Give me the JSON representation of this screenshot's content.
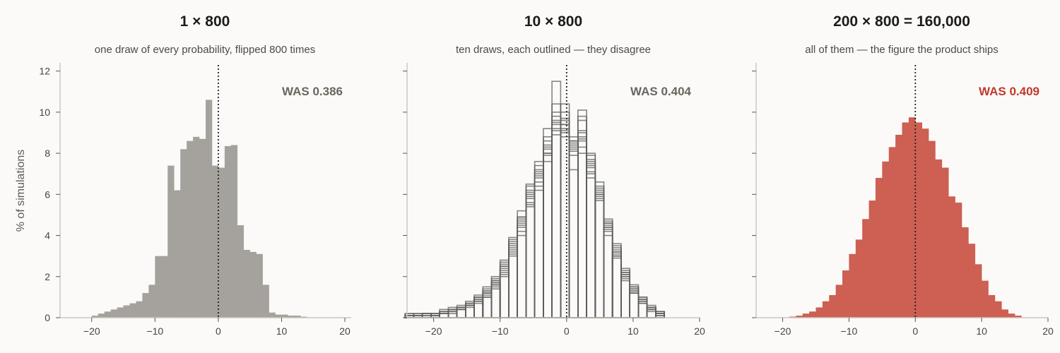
{
  "y_axis_label": "% of simulations",
  "chart_data": [
    {
      "type": "bar",
      "title": "1 × 800",
      "subtitle": "one draw of every probability, flipped 800 times",
      "annotation": "WAS 0.386",
      "annotation_color": "#6b655f",
      "style": "filled",
      "fill": "#a5a29d",
      "xlim": [
        -25,
        21
      ],
      "ylim": [
        0,
        12.4
      ],
      "xticks": [
        -20,
        -10,
        0,
        10,
        20
      ],
      "yticks": [
        0,
        2,
        4,
        6,
        8,
        10,
        12
      ],
      "bin_width": 1.0,
      "reference_line_x": 0,
      "bin_starts": [
        -20,
        -19,
        -18,
        -17,
        -16,
        -15,
        -14,
        -13,
        -12,
        -11,
        -10,
        -9,
        -8,
        -7,
        -6,
        -5,
        -4,
        -3,
        -2,
        -1,
        0,
        1,
        2,
        3,
        4,
        5,
        6,
        7,
        8,
        9,
        10,
        11,
        12,
        13
      ],
      "values": [
        0.1,
        0.2,
        0.3,
        0.4,
        0.5,
        0.6,
        0.7,
        0.8,
        1.2,
        1.6,
        3.0,
        3.0,
        7.4,
        6.2,
        8.2,
        8.6,
        8.8,
        8.7,
        10.6,
        7.4,
        7.3,
        8.35,
        8.4,
        4.5,
        3.3,
        3.2,
        3.1,
        1.6,
        0.25,
        0.15,
        0.15,
        0.1,
        0.1,
        0.05
      ]
    },
    {
      "type": "bar",
      "title": "10 × 800",
      "subtitle": "ten draws, each outlined — they disagree",
      "annotation": "WAS 0.404",
      "annotation_color": "#6b655f",
      "style": "step-outline",
      "stroke": "#5e5e5e",
      "xlim": [
        -24,
        20
      ],
      "ylim": [
        0,
        12.4
      ],
      "xticks": [
        -20,
        -10,
        0,
        10,
        20
      ],
      "yticks": [
        0,
        2,
        4,
        6,
        8,
        10,
        12
      ],
      "bin_width": 1.3,
      "reference_line_x": 0,
      "bin_starts": [
        -24.3,
        -23.0,
        -21.7,
        -20.4,
        -19.1,
        -17.8,
        -16.5,
        -15.2,
        -13.9,
        -12.6,
        -11.3,
        -10.0,
        -8.7,
        -7.4,
        -6.1,
        -4.8,
        -3.5,
        -2.2,
        -0.9,
        0.4,
        1.7,
        3.0,
        4.3,
        5.6,
        6.9,
        8.2,
        9.5,
        10.8,
        12.1,
        13.4
      ],
      "series": [
        {
          "values": [
            0.2,
            0,
            0.2,
            0,
            0.2,
            0.3,
            0.4,
            0.5,
            0.7,
            1.0,
            1.4,
            2.2,
            3.0,
            4.4,
            5.4,
            6.6,
            8.3,
            9.4,
            9.6,
            8.1,
            8.6,
            7.3,
            6.2,
            4.6,
            3.2,
            2.0,
            1.4,
            0.8,
            0.4,
            0.2
          ]
        },
        {
          "values": [
            0.1,
            0.1,
            0,
            0.2,
            0.3,
            0.4,
            0.5,
            0.6,
            0.8,
            1.1,
            1.6,
            2.0,
            3.4,
            4.0,
            5.8,
            6.2,
            8.0,
            9.8,
            9.2,
            8.6,
            9.0,
            7.7,
            5.9,
            4.3,
            3.0,
            2.2,
            1.2,
            0.9,
            0.5,
            0.3
          ]
        },
        {
          "values": [
            0,
            0,
            0.2,
            0.1,
            0.2,
            0.4,
            0.6,
            0.7,
            1.0,
            1.3,
            1.5,
            2.4,
            3.2,
            4.8,
            5.6,
            6.9,
            7.6,
            8.9,
            10.4,
            8.5,
            8.3,
            7.0,
            6.6,
            4.0,
            3.6,
            1.8,
            1.6,
            0.7,
            0.4,
            0.2
          ]
        },
        {
          "values": [
            0,
            0.1,
            0.2,
            0.2,
            0.3,
            0.3,
            0.4,
            0.6,
            0.9,
            1.2,
            1.8,
            2.6,
            3.7,
            4.9,
            6.4,
            7.2,
            8.6,
            9.1,
            9.0,
            7.9,
            9.6,
            7.6,
            6.0,
            4.4,
            3.1,
            2.4,
            1.3,
            1.0,
            0.4,
            0.1
          ]
        },
        {
          "values": [
            0.2,
            0,
            0.1,
            0.2,
            0.2,
            0.5,
            0.5,
            0.8,
            1.1,
            1.5,
            2.0,
            2.8,
            3.9,
            5.2,
            6.0,
            7.6,
            9.2,
            10.0,
            9.4,
            7.2,
            8.0,
            6.8,
            5.7,
            4.8,
            3.4,
            2.1,
            1.5,
            0.8,
            0.6,
            0.3
          ]
        },
        {
          "values": [
            0.1,
            0.2,
            0.2,
            0.1,
            0.3,
            0.4,
            0.5,
            0.6,
            0.8,
            1.2,
            1.7,
            2.3,
            3.5,
            4.5,
            6.2,
            7.0,
            8.2,
            10.4,
            8.8,
            8.4,
            9.8,
            8.0,
            6.1,
            4.5,
            3.3,
            1.9,
            1.2,
            0.9,
            0.5,
            0.2
          ]
        },
        {
          "values": [
            0,
            0.1,
            0,
            0.2,
            0.2,
            0.3,
            0.4,
            0.6,
            1.0,
            1.4,
            1.9,
            2.5,
            3.3,
            4.2,
            5.9,
            6.4,
            7.9,
            9.5,
            9.7,
            8.2,
            8.8,
            7.4,
            6.4,
            4.6,
            2.9,
            2.3,
            1.4,
            0.8,
            0.5,
            0.1
          ]
        },
        {
          "values": [
            0.1,
            0,
            0.2,
            0.1,
            0.4,
            0.4,
            0.5,
            0.7,
            0.9,
            1.3,
            1.6,
            2.1,
            3.6,
            4.6,
            6.5,
            7.4,
            8.8,
            9.6,
            9.4,
            8.6,
            9.1,
            7.9,
            6.3,
            4.2,
            3.5,
            2.0,
            1.3,
            0.7,
            0.3,
            0.2
          ]
        },
        {
          "values": [
            0,
            0.2,
            0.1,
            0.2,
            0.3,
            0.2,
            0.4,
            0.6,
            0.8,
            1.0,
            1.7,
            2.5,
            3.1,
            4.9,
            5.5,
            6.8,
            8.4,
            11.5,
            10.0,
            8.8,
            10.1,
            7.1,
            5.8,
            4.4,
            3.2,
            2.2,
            1.5,
            1.0,
            0.5,
            0.3
          ]
        },
        {
          "values": [
            0.1,
            0.1,
            0.2,
            0.1,
            0.2,
            0.4,
            0.5,
            0.7,
            1.0,
            1.2,
            1.8,
            2.7,
            3.8,
            4.7,
            6.1,
            7.1,
            8.0,
            9.2,
            9.1,
            8.3,
            8.7,
            7.5,
            6.0,
            4.7,
            3.0,
            2.1,
            1.2,
            0.9,
            0.4,
            0.2
          ]
        }
      ]
    },
    {
      "type": "bar",
      "title": "200 × 800 = 160,000",
      "subtitle": "all of them — the figure the product ships",
      "annotation": "WAS 0.409",
      "annotation_color": "#c0392b",
      "style": "filled",
      "fill": "#cd5f53",
      "xlim": [
        -24,
        20
      ],
      "ylim": [
        0,
        12.4
      ],
      "xticks": [
        -20,
        -10,
        0,
        10,
        20
      ],
      "yticks": [
        0,
        2,
        4,
        6,
        8,
        10,
        12
      ],
      "bin_width": 1.0,
      "reference_line_x": 0,
      "bin_starts": [
        -19,
        -18,
        -17,
        -16,
        -15,
        -14,
        -13,
        -12,
        -11,
        -10,
        -9,
        -8,
        -7,
        -6,
        -5,
        -4,
        -3,
        -2,
        -1,
        0,
        1,
        2,
        3,
        4,
        5,
        6,
        7,
        8,
        9,
        10,
        11,
        12,
        13,
        14,
        15
      ],
      "values": [
        0.05,
        0.1,
        0.2,
        0.3,
        0.5,
        0.8,
        1.1,
        1.6,
        2.3,
        3.1,
        3.8,
        4.8,
        5.7,
        6.8,
        7.6,
        8.3,
        8.9,
        9.5,
        9.75,
        9.5,
        9.2,
        8.6,
        7.7,
        7.3,
        5.9,
        5.6,
        4.4,
        3.6,
        2.6,
        1.8,
        1.1,
        0.8,
        0.4,
        0.2,
        0.1
      ]
    }
  ]
}
